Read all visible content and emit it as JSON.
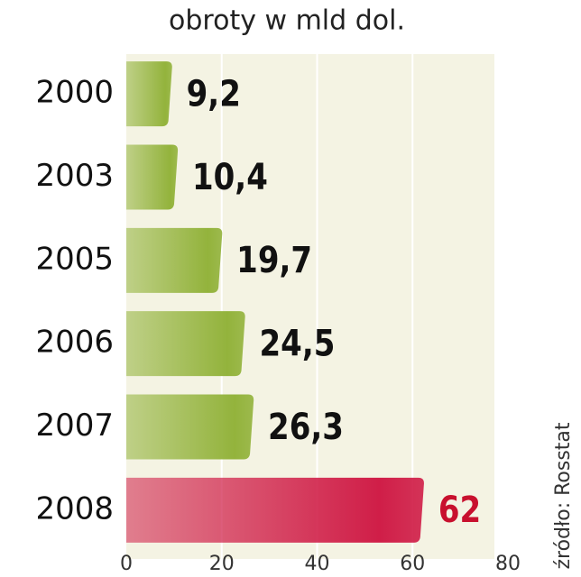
{
  "chart_data": {
    "type": "hbar",
    "title": "obroty w mld dol.",
    "categories": [
      "2000",
      "2003",
      "2005",
      "2006",
      "2007",
      "2008"
    ],
    "values": [
      9.2,
      10.4,
      19.7,
      24.5,
      26.3,
      62
    ],
    "value_labels": [
      "9,2",
      "10,4",
      "19,7",
      "24,5",
      "26,3",
      "62"
    ],
    "colors": [
      "#93b33c",
      "#93b33c",
      "#93b33c",
      "#93b33c",
      "#93b33c",
      "#d01e48"
    ],
    "value_label_colors": [
      "#111111",
      "#111111",
      "#111111",
      "#111111",
      "#111111",
      "#c8102e"
    ],
    "xlim": [
      0,
      80
    ],
    "xticks": [
      0,
      20,
      40,
      60,
      80
    ],
    "grid": true,
    "source": "źródło: Rosstat"
  }
}
